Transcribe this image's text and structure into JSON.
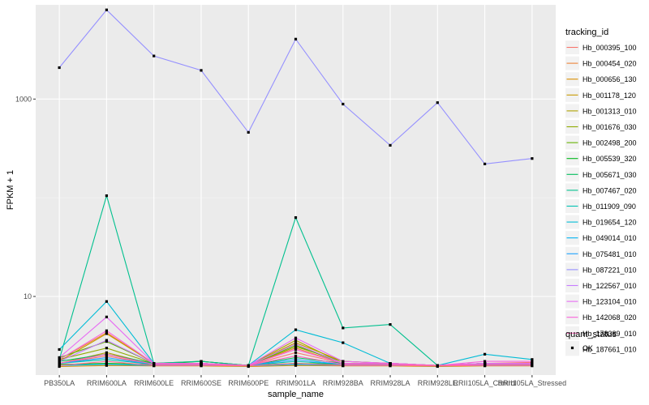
{
  "chart_data": {
    "type": "line",
    "xlabel": "sample_name",
    "ylabel": "FPKM + 1",
    "yscale": "log10",
    "ylim": [
      1.6,
      9000
    ],
    "yticks": [
      10,
      1000
    ],
    "ytick_labels": [
      "10",
      "1000"
    ],
    "grid": true,
    "legend_position": "right",
    "categories": [
      "PB350LA",
      "RRIM600LA",
      "RRIM600LE",
      "RRIM600SE",
      "RRIM600PE",
      "RRIM901LA",
      "RRIM928BA",
      "RRIM928LA",
      "RRIM928LE",
      "RRII105LA_Control",
      "RRII105LA_Stressed"
    ],
    "legend_title": "tracking_id",
    "shape_legend_title": "quant_status",
    "shape_legend_entries": [
      "OK"
    ],
    "series": [
      {
        "name": "Hb_000395_100",
        "color": "#F8766D",
        "values": [
          2.1,
          2.5,
          2.05,
          2.05,
          2.0,
          2.7,
          2.1,
          2.05,
          2.0,
          2.1,
          2.15
        ]
      },
      {
        "name": "Hb_000454_020",
        "color": "#EC8239",
        "values": [
          2.3,
          4.3,
          2.1,
          2.1,
          2.0,
          3.0,
          2.1,
          2.05,
          2.0,
          2.1,
          2.1
        ]
      },
      {
        "name": "Hb_000656_130",
        "color": "#DB8E00",
        "values": [
          1.95,
          2.0,
          1.98,
          1.98,
          1.95,
          2.0,
          1.98,
          1.98,
          1.95,
          1.98,
          1.98
        ]
      },
      {
        "name": "Hb_001178_120",
        "color": "#C79800",
        "values": [
          2.2,
          4.2,
          2.1,
          2.1,
          2.0,
          3.4,
          2.2,
          2.1,
          2.0,
          2.1,
          2.1
        ]
      },
      {
        "name": "Hb_001313_010",
        "color": "#AEA200",
        "values": [
          2.1,
          2.7,
          2.05,
          2.05,
          2.0,
          3.6,
          2.1,
          2.05,
          2.0,
          2.05,
          2.05
        ]
      },
      {
        "name": "Hb_001676_030",
        "color": "#8FAA00",
        "values": [
          2.3,
          3.0,
          2.1,
          2.2,
          2.0,
          3.1,
          2.2,
          2.1,
          2.0,
          2.1,
          2.1
        ]
      },
      {
        "name": "Hb_002498_200",
        "color": "#64B200",
        "values": [
          2.4,
          3.5,
          2.1,
          2.1,
          2.0,
          3.2,
          2.1,
          2.1,
          2.0,
          2.1,
          2.1
        ]
      },
      {
        "name": "Hb_005539_320",
        "color": "#00B81B",
        "values": [
          2.05,
          2.1,
          2.05,
          2.2,
          2.0,
          2.1,
          2.05,
          2.05,
          2.0,
          2.05,
          2.05
        ]
      },
      {
        "name": "Hb_005671_030",
        "color": "#00BD5C",
        "values": [
          2.2,
          2.6,
          2.1,
          2.1,
          2.0,
          2.4,
          2.1,
          2.05,
          2.0,
          2.05,
          2.05
        ]
      },
      {
        "name": "Hb_007467_020",
        "color": "#00C08E",
        "values": [
          2.3,
          105,
          2.1,
          2.2,
          2.0,
          63,
          4.8,
          5.2,
          2.0,
          2.1,
          2.1
        ]
      },
      {
        "name": "Hb_011909_090",
        "color": "#00C1B2",
        "values": [
          2.1,
          2.3,
          2.05,
          2.05,
          2.0,
          2.2,
          2.05,
          2.05,
          2.0,
          2.05,
          2.05
        ]
      },
      {
        "name": "Hb_019654_120",
        "color": "#00BCD6",
        "values": [
          2.9,
          8.9,
          2.1,
          2.1,
          2.0,
          4.6,
          3.4,
          2.1,
          2.0,
          2.6,
          2.3
        ]
      },
      {
        "name": "Hb_049014_010",
        "color": "#00B2F3",
        "values": [
          2.0,
          2.05,
          2.0,
          2.0,
          1.98,
          2.05,
          2.0,
          2.0,
          1.98,
          2.0,
          2.0
        ]
      },
      {
        "name": "Hb_075481_010",
        "color": "#1FA2FF",
        "values": [
          2.1,
          2.4,
          2.05,
          2.05,
          2.0,
          2.3,
          2.05,
          2.05,
          2.0,
          2.05,
          2.05
        ]
      },
      {
        "name": "Hb_087221_010",
        "color": "#9590FF",
        "values": [
          2080,
          8000,
          2730,
          1950,
          460,
          4050,
          890,
          340,
          920,
          220,
          250
        ]
      },
      {
        "name": "Hb_122567_010",
        "color": "#C77CFF",
        "values": [
          2.2,
          3.6,
          2.1,
          2.1,
          2.0,
          3.3,
          2.1,
          2.1,
          2.0,
          2.1,
          2.1
        ]
      },
      {
        "name": "Hb_123104_010",
        "color": "#E76BF3",
        "values": [
          2.4,
          6.2,
          2.1,
          2.1,
          2.0,
          3.8,
          2.2,
          2.1,
          2.0,
          2.1,
          2.1
        ]
      },
      {
        "name": "Hb_142068_020",
        "color": "#FA62DB",
        "values": [
          2.3,
          4.5,
          2.1,
          2.1,
          2.0,
          2.9,
          2.1,
          2.1,
          2.0,
          2.2,
          2.2
        ]
      },
      {
        "name": "Hb_178389_010",
        "color": "#FF62BC",
        "values": [
          2.1,
          2.6,
          2.05,
          2.05,
          2.0,
          2.5,
          2.05,
          2.05,
          2.0,
          2.05,
          2.05
        ]
      },
      {
        "name": "Hb_187661_010",
        "color": "#FF6C91",
        "values": [
          2.0,
          2.2,
          2.0,
          2.0,
          1.98,
          2.1,
          2.0,
          2.0,
          1.98,
          2.0,
          2.0
        ]
      }
    ]
  }
}
